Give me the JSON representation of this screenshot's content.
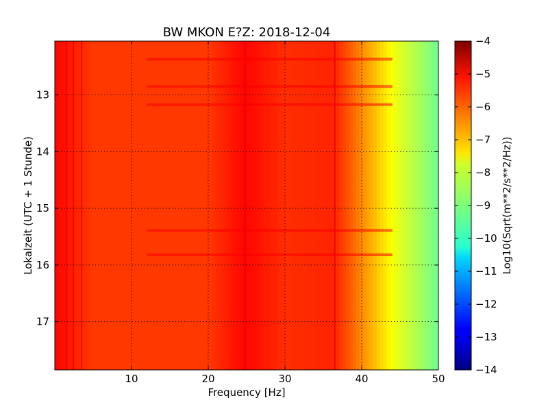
{
  "chart_data": {
    "type": "heatmap",
    "title": "BW MKON E?Z: 2018-12-04",
    "xlabel": "Frequency [Hz]",
    "ylabel": "Lokalzeit (UTC + 1 Stunde)",
    "xlim": [
      0,
      50
    ],
    "ylim": [
      12.05,
      17.85
    ],
    "y_inverted": true,
    "x_ticks": [
      10,
      20,
      30,
      40,
      50
    ],
    "x_tick_labels": [
      "10",
      "20",
      "30",
      "40",
      "50"
    ],
    "y_ticks": [
      13,
      14,
      15,
      16,
      17
    ],
    "y_tick_labels": [
      "13",
      "14",
      "15",
      "16",
      "17"
    ],
    "grid": true,
    "colormap": "jet",
    "colorbar": {
      "label": "Log10(Sqrt(m**2/s**2/Hz))",
      "range": [
        -14,
        -4
      ],
      "ticks": [
        -4,
        -5,
        -6,
        -7,
        -8,
        -9,
        -10,
        -11,
        -12,
        -13,
        -14
      ],
      "tick_labels": [
        "−4",
        "−5",
        "−6",
        "−7",
        "−8",
        "−9",
        "−10",
        "−11",
        "−12",
        "−13",
        "−14"
      ]
    },
    "spectrum_profile": {
      "frequency_hz": [
        0,
        5,
        10,
        20,
        24.8,
        30,
        36.5,
        38,
        40,
        42,
        44,
        46,
        48,
        50
      ],
      "log_amplitude": [
        -5.3,
        -5.8,
        -5.8,
        -5.8,
        -5.3,
        -5.7,
        -5.6,
        -6.0,
        -6.6,
        -7.2,
        -7.8,
        -8.3,
        -8.7,
        -9.2
      ]
    },
    "horizontal_bands_hour": [
      12.37,
      12.85,
      13.17,
      15.39,
      15.82
    ],
    "vertical_lines_hz": [
      1.5,
      2.4,
      3.5,
      24.8,
      36.5
    ]
  }
}
